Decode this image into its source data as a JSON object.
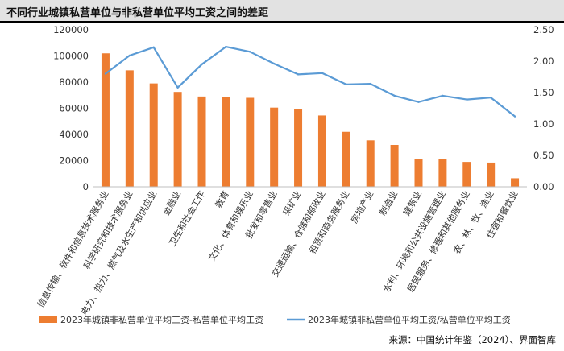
{
  "title": "不同行业城镇私营单位与非私营单位平均工资之间的差距",
  "source": "来源：中国统计年鉴（2024）、界面智库",
  "colors": {
    "bar": "#ed7d31",
    "line": "#5b9bd5",
    "axis": "#bfbfbf",
    "text": "#333333"
  },
  "chart_data": {
    "type": "bar",
    "categories": [
      "信息传输、软件和信息技术服务业",
      "科学研究和技术服务业",
      "电力、热力、燃气及水生产和供应业",
      "金融业",
      "卫生和社会工作",
      "教育",
      "文化、体育和娱乐业",
      "批发和零售业",
      "采矿业",
      "交通运输、仓储和邮政业",
      "租赁和商务服务业",
      "房地产业",
      "制造业",
      "建筑业",
      "水利、环境和公共设施管理业",
      "居民服务、修理和其他服务业",
      "农、林、牧、渔业",
      "住宿和餐饮业"
    ],
    "series": [
      {
        "name": "2023年城镇非私营单位平均工资-私营单位平均工资",
        "type": "bar",
        "axis": "left",
        "values": [
          102000,
          89000,
          79000,
          72500,
          69000,
          68500,
          68000,
          60500,
          59500,
          54500,
          42000,
          35500,
          32000,
          21500,
          21000,
          19000,
          18500,
          6500
        ]
      },
      {
        "name": "2023年城镇非私营单位平均工资/私营单位平均工资",
        "type": "line",
        "axis": "right",
        "values": [
          1.8,
          2.09,
          2.22,
          1.58,
          1.95,
          2.23,
          2.15,
          1.96,
          1.79,
          1.81,
          1.63,
          1.64,
          1.45,
          1.35,
          1.45,
          1.39,
          1.42,
          1.12
        ]
      }
    ],
    "y_left": {
      "min": 0,
      "max": 120000,
      "ticks": [
        "0",
        "20000",
        "40000",
        "60000",
        "80000",
        "100000",
        "120000"
      ]
    },
    "y_right": {
      "min": 0,
      "max": 2.5,
      "ticks": [
        "0.00",
        "0.50",
        "1.00",
        "1.50",
        "2.00",
        "2.50"
      ]
    },
    "grid": false,
    "legend": "bottom"
  }
}
